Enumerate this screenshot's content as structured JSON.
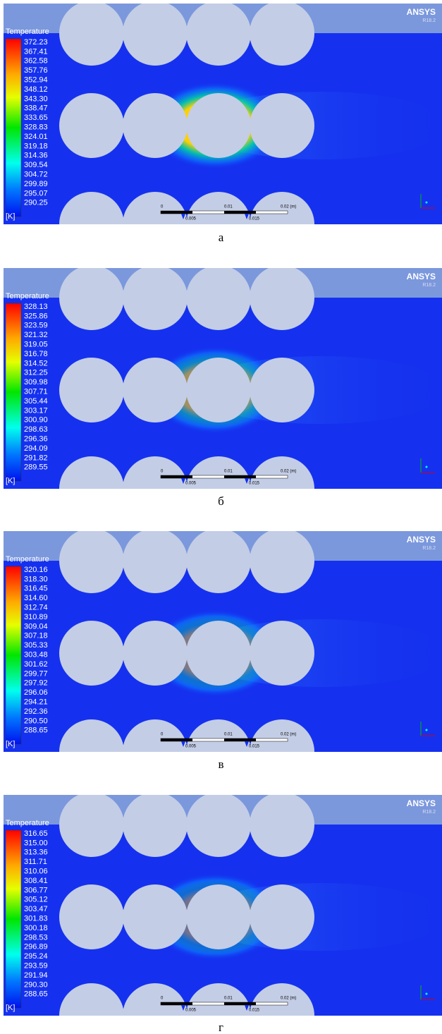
{
  "panels": [
    {
      "legend_title": "Temperature",
      "unit": "[K]",
      "labels": [
        "372.23",
        "367.41",
        "362.58",
        "357.76",
        "352.94",
        "348.12",
        "343.30",
        "338.47",
        "333.65",
        "328.83",
        "324.01",
        "319.18",
        "314.36",
        "309.54",
        "304.72",
        "299.89",
        "295.07",
        "290.25"
      ],
      "brand": "ANSYS",
      "version": "R18.2",
      "scale": [
        "0",
        "0.005",
        "0.01",
        "0.015",
        "0.02 (m)"
      ],
      "caption": "а"
    },
    {
      "legend_title": "Temperature",
      "unit": "[K]",
      "labels": [
        "328.13",
        "325.86",
        "323.59",
        "321.32",
        "319.05",
        "316.78",
        "314.52",
        "312.25",
        "309.98",
        "307.71",
        "305.44",
        "303.17",
        "300.90",
        "298.63",
        "296.36",
        "294.09",
        "291.82",
        "289.55"
      ],
      "brand": "ANSYS",
      "version": "R18.2",
      "scale": [
        "0",
        "0.005",
        "0.01",
        "0.015",
        "0.02 (m)"
      ],
      "caption": "б"
    },
    {
      "legend_title": "Temperature",
      "unit": "[K]",
      "labels": [
        "320.16",
        "318.30",
        "316.45",
        "314.60",
        "312.74",
        "310.89",
        "309.04",
        "307.18",
        "305.33",
        "303.48",
        "301.62",
        "299.77",
        "297.92",
        "296.06",
        "294.21",
        "292.36",
        "290.50",
        "288.65"
      ],
      "brand": "ANSYS",
      "version": "R18.2",
      "scale": [
        "0",
        "0.005",
        "0.01",
        "0.015",
        "0.02 (m)"
      ],
      "caption": "в"
    },
    {
      "legend_title": "Temperature",
      "unit": "[K]",
      "labels": [
        "316.65",
        "315.00",
        "313.36",
        "311.71",
        "310.06",
        "308.41",
        "306.77",
        "305.12",
        "303.47",
        "301.83",
        "300.18",
        "298.53",
        "296.89",
        "295.24",
        "293.59",
        "291.94",
        "290.30",
        "288.65"
      ],
      "brand": "ANSYS",
      "version": "R18.2",
      "scale": [
        "0",
        "0.005",
        "0.01",
        "0.015",
        "0.02 (m)"
      ],
      "caption": "г"
    }
  ]
}
